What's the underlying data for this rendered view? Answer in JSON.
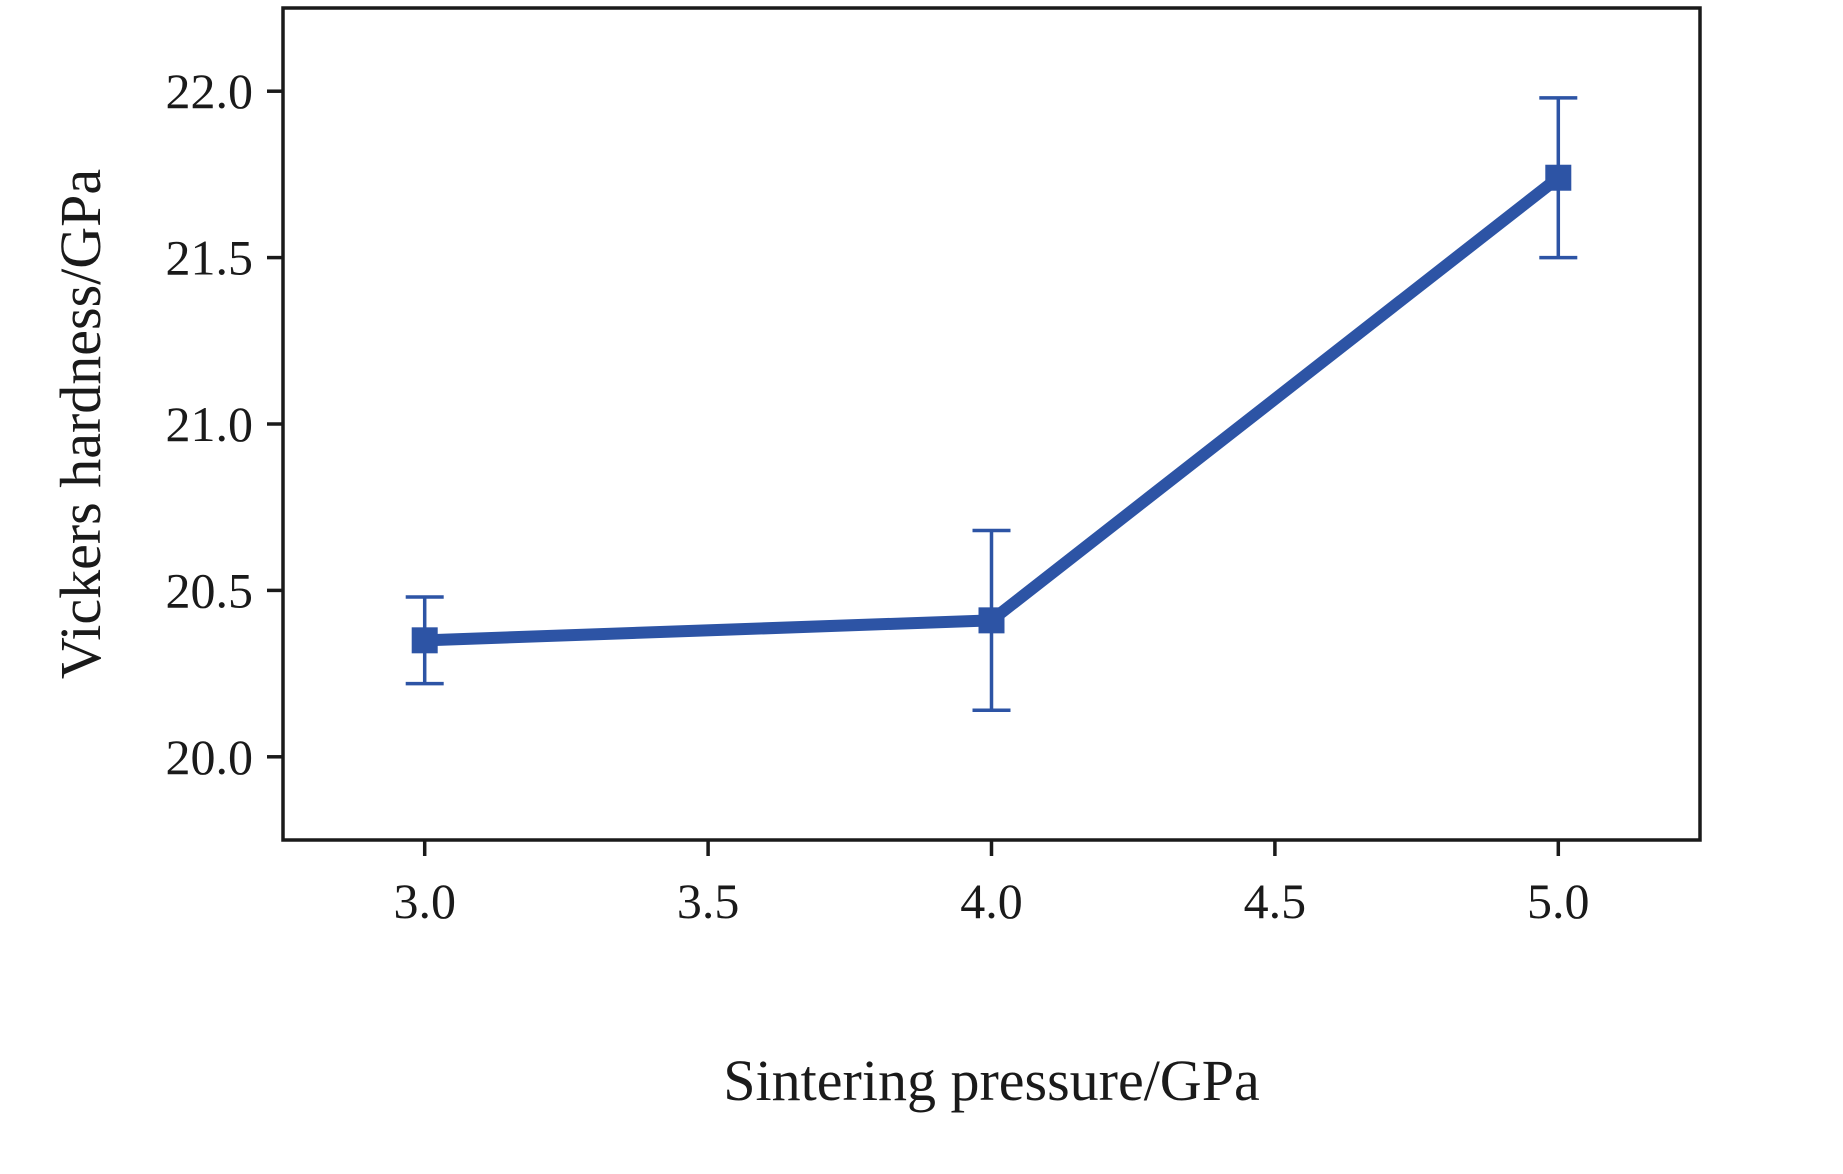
{
  "chart_data": {
    "type": "line",
    "title": "",
    "xlabel": "Sintering pressure/GPa",
    "ylabel": "Vickers hardness/GPa",
    "x": [
      3.0,
      4.0,
      5.0
    ],
    "series": [
      {
        "name": "Vickers hardness",
        "values": [
          20.35,
          20.41,
          21.74
        ],
        "yerr": [
          0.13,
          0.27,
          0.24
        ],
        "color": "#2d54a5",
        "marker": "square"
      }
    ],
    "xlim": [
      2.75,
      5.25
    ],
    "ylim": [
      19.75,
      22.25
    ],
    "xticks": [
      3.0,
      3.5,
      4.0,
      4.5,
      5.0
    ],
    "yticks": [
      20.0,
      20.5,
      21.0,
      21.5,
      22.0
    ],
    "grid": false,
    "legend": "none",
    "tick_decimals": 1,
    "axis_color": "#1a1a1a",
    "background": "#ffffff"
  }
}
